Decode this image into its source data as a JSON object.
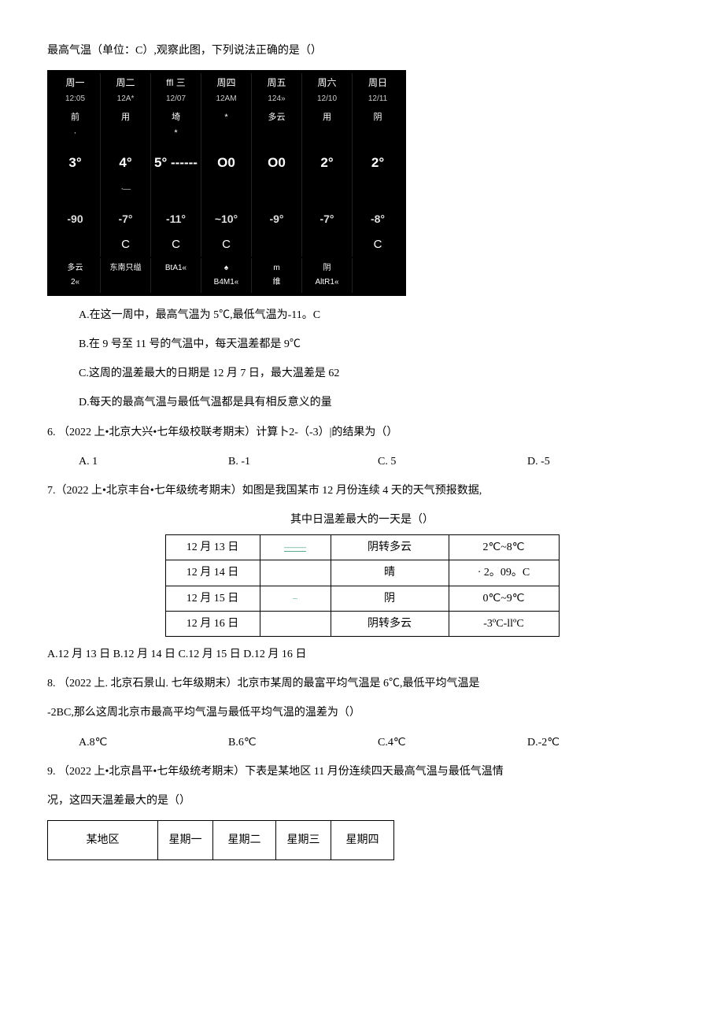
{
  "intro_line": "最高气温（单位：C）,观察此图，下列说法正确的是（）",
  "weather_widget": {
    "bg": "#000000",
    "fg": "#ffffff",
    "cols": [
      {
        "day": "周一",
        "date": "12:05",
        "cond": "前",
        "cond2": "·",
        "hi": "3°",
        "lo": "-90",
        "unit": "",
        "bot1": "多云",
        "bot2": "2«"
      },
      {
        "day": "周二",
        "date": "12A*",
        "cond": "用",
        "cond2": "",
        "hi": "4°",
        "hi2": "·—",
        "lo": "-7°",
        "unit": "C",
        "bot1": "东南只缢",
        "bot2": ""
      },
      {
        "day": "ffl 三",
        "date": "12/07",
        "cond": "埼",
        "cond2": "*",
        "hi": "5° ------",
        "lo": "-11°",
        "unit": "C",
        "bot1": "BtA1«",
        "bot2": ""
      },
      {
        "day": "周四",
        "date": "12AM",
        "cond": "*",
        "cond2": "",
        "hi": "O0",
        "lo": "~10°",
        "unit": "C",
        "bot1": "♠",
        "bot2": "B4M1«"
      },
      {
        "day": "周五",
        "date": "124»",
        "cond": "多云",
        "cond2": "",
        "hi": "O0",
        "lo": "-9°",
        "unit": "",
        "bot1": "m",
        "bot2": "维"
      },
      {
        "day": "周六",
        "date": "12/10",
        "cond": "用",
        "cond2": "",
        "hi": "2°",
        "lo": "-7°",
        "unit": "",
        "bot1": "阴",
        "bot2": "AltR1«"
      },
      {
        "day": "周日",
        "date": "12/11",
        "cond": "阴",
        "cond2": "",
        "hi": "2°",
        "lo": "-8°",
        "unit": "C",
        "bot1": "",
        "bot2": ""
      }
    ]
  },
  "q5_options": {
    "A": "A.在这一周中，最高气温为 5℃,最低气温为-11。C",
    "B": "B.在 9 号至 11 号的气温中，每天温差都是 9℃",
    "C": "C.这周的温差最大的日期是 12 月 7 日，最大温差是 62",
    "D": "D.每天的最高气温与最低气温都是具有相反意义的量"
  },
  "q6": {
    "stem": "6.   （2022 上•北京大兴•七年级校联考期末）计算卜2-（-3）|的结果为（）",
    "opts": {
      "A": "A. 1",
      "B": "B. -1",
      "C": "C. 5",
      "D": "D. -5"
    }
  },
  "q7": {
    "stem": "7.（2022 上•北京丰台•七年级统考期末）如图是我国某市 12 月份连续 4 天的天气预报数据,",
    "caption": "其中日温差最大的一天是（）",
    "table": {
      "rows": [
        [
          "12 月 13 日",
          "——",
          "阴转多云",
          "2℃~8℃"
        ],
        [
          "12 月 14 日",
          "",
          "晴",
          "· 2。09。C"
        ],
        [
          "12 月 15 日",
          "┈",
          "阴",
          "0℃~9℃"
        ],
        [
          "12 月 16 日",
          "",
          "阴转多云",
          "-3ºC-llºC"
        ]
      ],
      "col_widths": [
        "120px",
        "90px",
        "150px",
        "140px"
      ]
    },
    "answers": "A.12 月 13 日 B.12 月 14 日 C.12 月 15 日 D.12 月 16 日"
  },
  "q8": {
    "line1": "8.   （2022 上. 北京石景山. 七年级期末）北京市某周的最富平均气温是 6℃,最低平均气温是",
    "line2": "-2BC,那么这周北京市最高平均气温与最低平均气温的温差为（）",
    "opts": {
      "A": "A.8℃",
      "B": "B.6℃",
      "C": "C.4℃",
      "D": "D.-2℃"
    }
  },
  "q9": {
    "line1": "9.   （2022 上•北京昌平•七年级统考期末）下表是某地区 11 月份连续四天最高气温与最低气温情",
    "line2": "况，这四天温差最大的是（）",
    "table": {
      "headers": [
        "某地区",
        "星期一",
        "星期二",
        "星期三",
        "星期四"
      ],
      "col_widths": [
        "140px",
        "70px",
        "80px",
        "70px",
        "80px"
      ]
    }
  }
}
